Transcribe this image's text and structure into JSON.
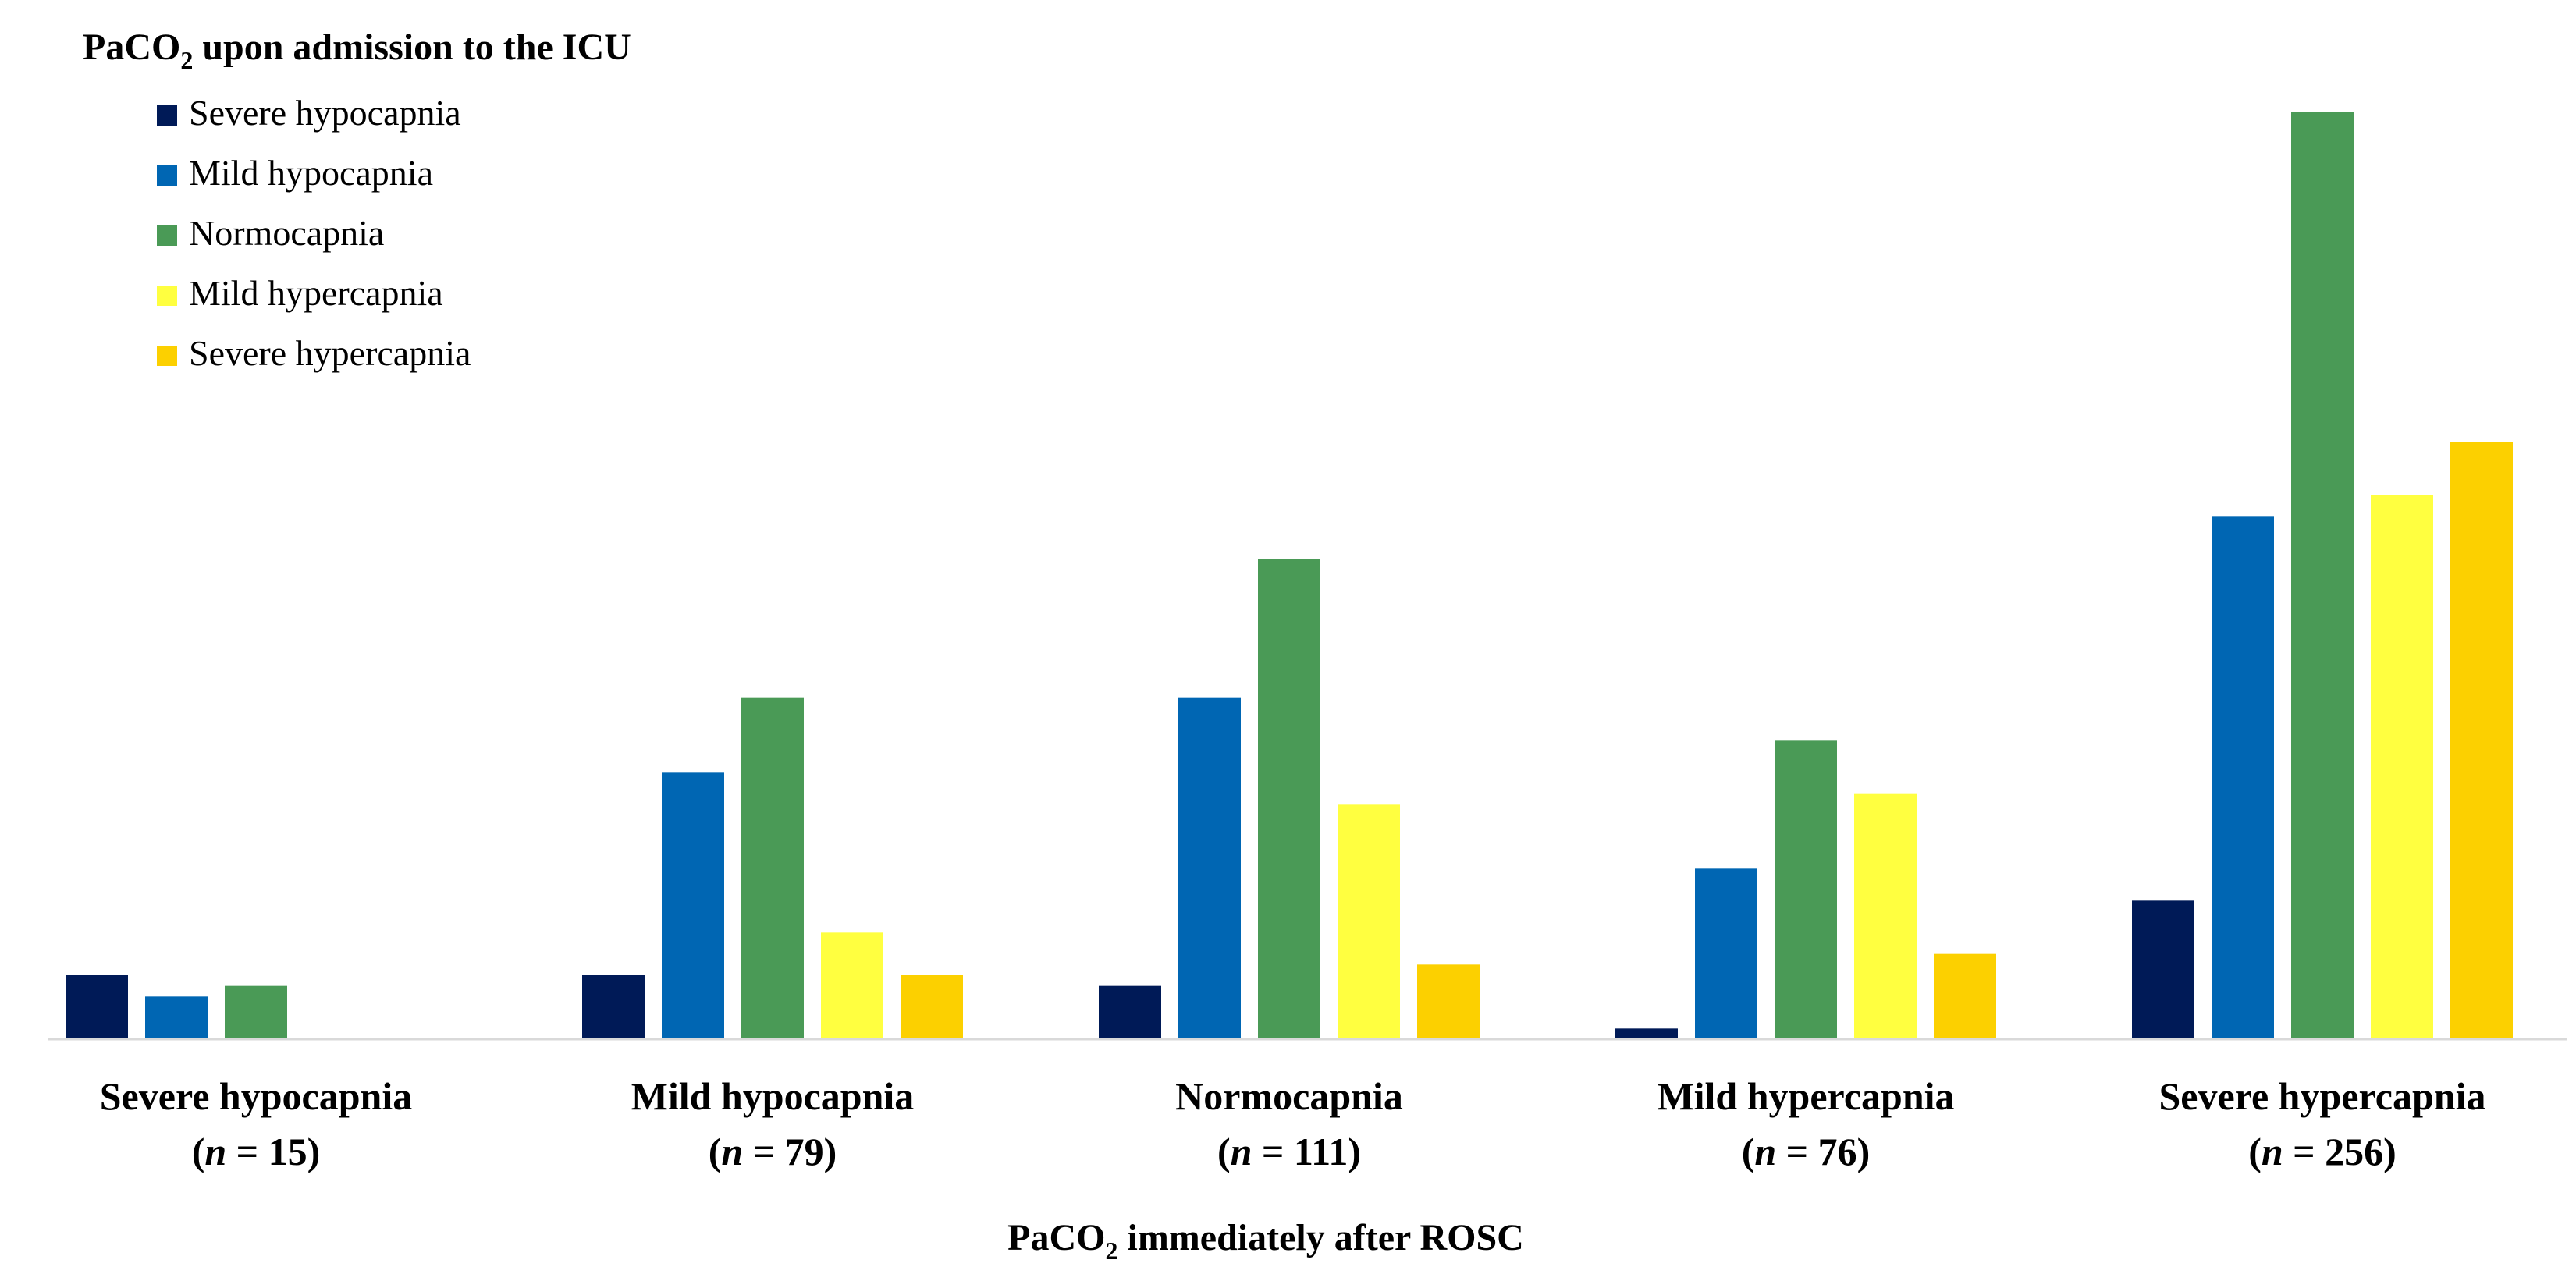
{
  "chart_data": {
    "type": "bar",
    "legend_title": {
      "pre": "PaCO",
      "sub": "2",
      "post": " upon admission to the ICU"
    },
    "xlabel": {
      "pre": "PaCO",
      "sub": "2",
      "post": " immediately after ROSC"
    },
    "categories": [
      {
        "name": "Severe hypocapnia",
        "n_pre": "(",
        "n_var": "n",
        "n_post": " = 15)"
      },
      {
        "name": "Mild hypocapnia",
        "n_pre": "(",
        "n_var": "n",
        "n_post": " = 79)"
      },
      {
        "name": "Normocapnia",
        "n_pre": "(",
        "n_var": "n",
        "n_post": " = 111)"
      },
      {
        "name": "Mild hypercapnia",
        "n_pre": "(",
        "n_var": "n",
        "n_post": " = 76)"
      },
      {
        "name": "Severe hypercapnia",
        "n_pre": "(",
        "n_var": "n",
        "n_post": " = 256)"
      }
    ],
    "series": [
      {
        "name": "Severe hypocapnia",
        "color": "#001a57",
        "values": [
          6,
          6,
          5,
          1,
          13
        ]
      },
      {
        "name": "Mild hypocapnia",
        "color": "#0066b3",
        "values": [
          4,
          25,
          32,
          16,
          49
        ]
      },
      {
        "name": "Normocapnia",
        "color": "#4a9a56",
        "values": [
          5,
          32,
          45,
          28,
          87
        ]
      },
      {
        "name": "Mild hypercapnia",
        "color": "#ffff40",
        "values": [
          0,
          10,
          22,
          23,
          51
        ]
      },
      {
        "name": "Severe hypercapnia",
        "color": "#fcd000",
        "values": [
          0,
          6,
          7,
          8,
          56
        ]
      }
    ],
    "ylim": [
      0,
      87
    ],
    "grid": false,
    "legend_position": "top-left",
    "axis_color": "#d9d9d9"
  }
}
